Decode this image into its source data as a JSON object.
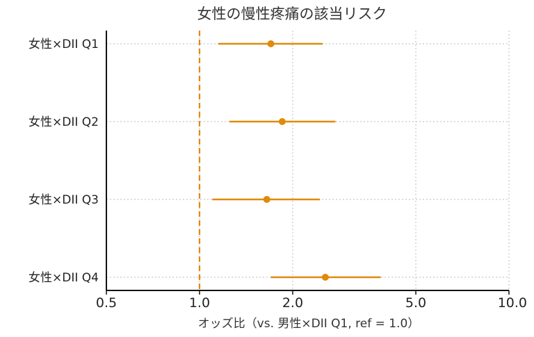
{
  "chart_data": {
    "type": "forest",
    "title": "女性の慢性疼痛の該当リスク",
    "xlabel": "オッズ比（vs. 男性×DII Q1, ref = 1.0）",
    "ylabel": "",
    "x_scale": "log",
    "xlim": [
      0.5,
      10.0
    ],
    "xticks": [
      "0.5",
      "1.0",
      "2.0",
      "5.0",
      "10.0"
    ],
    "xtick_values": [
      0.5,
      1.0,
      2.0,
      5.0,
      10.0
    ],
    "reference_line": 1.0,
    "grid": true,
    "color": "#e08a0b",
    "rows": [
      {
        "label": "女性×DII Q1",
        "or": 1.7,
        "lo": 1.15,
        "hi": 2.5
      },
      {
        "label": "女性×DII Q2",
        "or": 1.85,
        "lo": 1.25,
        "hi": 2.75
      },
      {
        "label": "女性×DII Q3",
        "or": 1.65,
        "lo": 1.1,
        "hi": 2.45
      },
      {
        "label": "女性×DII Q4",
        "or": 2.55,
        "lo": 1.7,
        "hi": 3.85
      }
    ]
  }
}
